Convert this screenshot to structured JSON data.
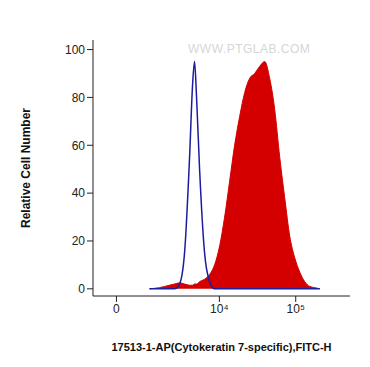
{
  "chart_data": {
    "type": "area",
    "x_label": "17513-1-AP(Cytokeratin 7-specific),FITC-H",
    "y_label": "Relative Cell Number",
    "watermark": "WWW.PTGLAB.COM",
    "log": "x",
    "grid": false,
    "xlim": [
      -500,
      500000
    ],
    "xticks": [
      0,
      {
        "value": 10000,
        "label": "10⁴"
      },
      {
        "value": 100000,
        "label": "10⁵"
      }
    ],
    "ylim": [
      -3,
      104
    ],
    "yticks": [
      0,
      20,
      40,
      60,
      80,
      100
    ],
    "x": [
      830,
      1290,
      1900,
      2290,
      2730,
      3250,
      3850,
      4250,
      4540,
      4850,
      5350,
      6280,
      7370,
      8620,
      10100,
      11770,
      13730,
      15990,
      18630,
      21690,
      25240,
      29350,
      34100,
      39650,
      46000,
      53450,
      62100,
      72100,
      83700,
      97100,
      112700,
      130750,
      151800,
      176100,
      204250
    ],
    "series": [
      {
        "type": "area",
        "color": "#d40000",
        "values": [
          0,
          0.5,
          1.5,
          2,
          2.5,
          2,
          1.5,
          1.5,
          2,
          2,
          3,
          4,
          6,
          10,
          18,
          30,
          45,
          60,
          72,
          82,
          88,
          90,
          93,
          95,
          88,
          75,
          55,
          38,
          22,
          13,
          7,
          3,
          1,
          0.5,
          0
        ]
      },
      {
        "type": "line",
        "color": "#1c1ca0",
        "values": [
          0,
          0,
          0,
          0,
          2,
          15,
          55,
          85,
          95,
          80,
          50,
          15,
          3,
          0,
          0,
          0,
          0,
          0,
          0,
          0,
          0,
          0,
          0,
          0,
          0,
          0,
          0,
          0,
          0,
          0,
          0,
          0,
          0,
          0,
          0
        ]
      }
    ]
  }
}
